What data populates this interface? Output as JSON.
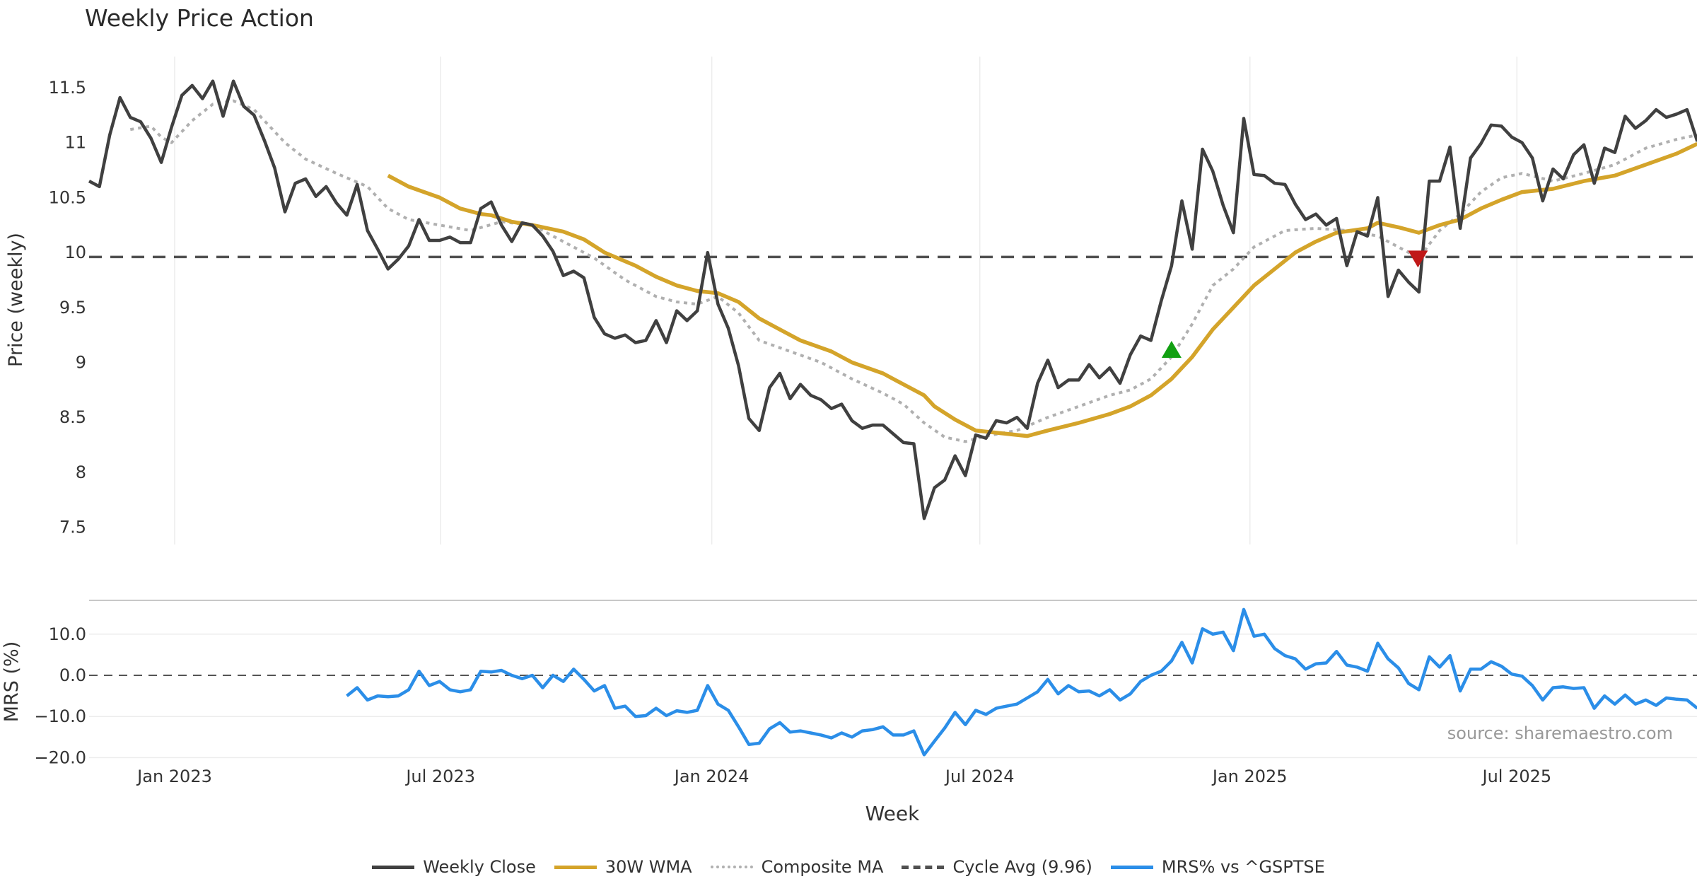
{
  "title": "Weekly Price Action",
  "source": "source: sharemaestro.com",
  "colors": {
    "close": "#404040",
    "wma": "#d4a42a",
    "composite": "#b0b0b0",
    "cycle": "#505050",
    "mrs": "#2b8ee8",
    "buy": "#12a012",
    "sell": "#c01818"
  },
  "legend": [
    {
      "label": "Weekly Close",
      "key": "close",
      "style": "solid"
    },
    {
      "label": "30W WMA",
      "key": "wma",
      "style": "solid"
    },
    {
      "label": "Composite MA",
      "key": "composite",
      "style": "dotted"
    },
    {
      "label": "Cycle Avg (9.96)",
      "key": "cycle",
      "style": "dashed"
    },
    {
      "label": "MRS% vs ^GSPTSE",
      "key": "mrs",
      "style": "solid"
    }
  ],
  "chart_data": [
    {
      "type": "line",
      "title": "Weekly Price Action",
      "ylabel": "Price (weekly)",
      "xlabel": "Week",
      "x_unit": "week index",
      "xlim": [
        0,
        156
      ],
      "ylim": [
        7.35,
        11.78
      ],
      "yticks": [
        11.5,
        11,
        10.5,
        10,
        9.5,
        9,
        8.5,
        8,
        7.5
      ],
      "ytick_labels": [
        "11.5",
        "11",
        "10.5",
        "10",
        "9.5",
        "9",
        "8.5",
        "8",
        "7.5"
      ],
      "xticks": [
        8.3,
        34.1,
        60.4,
        86.4,
        112.6,
        138.5
      ],
      "xtick_labels": [
        "Jan 2023",
        "Jul 2023",
        "Jan 2024",
        "Jul 2024",
        "Jan 2025",
        "Jul 2025"
      ],
      "grid": "vertical",
      "cycle_avg": 9.96,
      "series": [
        {
          "name": "Weekly Close",
          "key": "close",
          "start": 0,
          "values": [
            10.65,
            10.6,
            11.07,
            11.41,
            11.23,
            11.19,
            11.04,
            10.82,
            11.14,
            11.43,
            11.52,
            11.4,
            11.56,
            11.24,
            11.56,
            11.33,
            11.25,
            11.02,
            10.77,
            10.37,
            10.63,
            10.67,
            10.51,
            10.6,
            10.45,
            10.34,
            10.62,
            10.2,
            10.03,
            9.85,
            9.94,
            10.06,
            10.3,
            10.11,
            10.11,
            10.14,
            10.09,
            10.09,
            10.4,
            10.46,
            10.25,
            10.1,
            10.27,
            10.25,
            10.15,
            10.01,
            9.79,
            9.83,
            9.77,
            9.41,
            9.26,
            9.22,
            9.25,
            9.18,
            9.2,
            9.38,
            9.18,
            9.47,
            9.38,
            9.47,
            10.0,
            9.53,
            9.31,
            8.97,
            8.49,
            8.38,
            8.77,
            8.9,
            8.67,
            8.8,
            8.7,
            8.66,
            8.58,
            8.62,
            8.47,
            8.4,
            8.43,
            8.43,
            8.35,
            8.27,
            8.26,
            7.58,
            7.86,
            7.93,
            8.15,
            7.97,
            8.34,
            8.31,
            8.47,
            8.45,
            8.5,
            8.4,
            8.81,
            9.02,
            8.77,
            8.84,
            8.84,
            8.98,
            8.86,
            8.95,
            8.81,
            9.07,
            9.24,
            9.2,
            9.56,
            9.88,
            10.47,
            10.03,
            10.94,
            10.74,
            10.43,
            10.18,
            11.22,
            10.71,
            10.7,
            10.63,
            10.62,
            10.44,
            10.3,
            10.35,
            10.25,
            10.31,
            9.88,
            10.19,
            10.15,
            10.5,
            9.6,
            9.84,
            9.73,
            9.64,
            10.65,
            10.65,
            10.96,
            10.22,
            10.86,
            10.99,
            11.16,
            11.15,
            11.05,
            11.0,
            10.86,
            10.47,
            10.76,
            10.67,
            10.89,
            10.98,
            10.63,
            10.95,
            10.91,
            11.24,
            11.13,
            11.2,
            11.3,
            11.23,
            11.26,
            11.3,
            11.01
          ]
        },
        {
          "name": "30W WMA",
          "key": "wma",
          "points": [
            [
              29,
              10.7
            ],
            [
              31,
              10.6
            ],
            [
              34,
              10.5
            ],
            [
              36,
              10.4
            ],
            [
              38,
              10.35
            ],
            [
              39,
              10.34
            ],
            [
              41,
              10.28
            ],
            [
              43,
              10.25
            ],
            [
              46,
              10.19
            ],
            [
              48,
              10.12
            ],
            [
              50,
              10.0
            ],
            [
              53,
              9.88
            ],
            [
              55,
              9.78
            ],
            [
              57,
              9.7
            ],
            [
              59,
              9.65
            ],
            [
              61,
              9.63
            ],
            [
              63,
              9.55
            ],
            [
              65,
              9.4
            ],
            [
              67,
              9.3
            ],
            [
              69,
              9.2
            ],
            [
              72,
              9.1
            ],
            [
              74,
              9.0
            ],
            [
              77,
              8.9
            ],
            [
              79,
              8.8
            ],
            [
              81,
              8.7
            ],
            [
              82,
              8.6
            ],
            [
              84,
              8.48
            ],
            [
              86,
              8.38
            ],
            [
              89,
              8.35
            ],
            [
              91,
              8.33
            ],
            [
              93,
              8.38
            ],
            [
              96,
              8.45
            ],
            [
              99,
              8.53
            ],
            [
              101,
              8.6
            ],
            [
              103,
              8.7
            ],
            [
              105,
              8.85
            ],
            [
              107,
              9.05
            ],
            [
              109,
              9.3
            ],
            [
              111,
              9.5
            ],
            [
              113,
              9.7
            ],
            [
              115,
              9.85
            ],
            [
              117,
              10.0
            ],
            [
              119,
              10.1
            ],
            [
              121,
              10.18
            ],
            [
              124,
              10.22
            ],
            [
              125,
              10.27
            ],
            [
              127,
              10.23
            ],
            [
              129,
              10.18
            ],
            [
              131,
              10.25
            ],
            [
              133,
              10.3
            ],
            [
              135,
              10.4
            ],
            [
              137,
              10.48
            ],
            [
              139,
              10.55
            ],
            [
              142,
              10.58
            ],
            [
              145,
              10.65
            ],
            [
              148,
              10.7
            ],
            [
              151,
              10.8
            ],
            [
              154,
              10.9
            ],
            [
              156,
              10.99
            ]
          ]
        },
        {
          "name": "Composite MA",
          "key": "composite",
          "points": [
            [
              4,
              11.12
            ],
            [
              6,
              11.15
            ],
            [
              7,
              11.05
            ],
            [
              8,
              11.0
            ],
            [
              10,
              11.2
            ],
            [
              12,
              11.35
            ],
            [
              14,
              11.38
            ],
            [
              16,
              11.3
            ],
            [
              19,
              11.0
            ],
            [
              21,
              10.85
            ],
            [
              24,
              10.72
            ],
            [
              27,
              10.6
            ],
            [
              29,
              10.4
            ],
            [
              31,
              10.3
            ],
            [
              34,
              10.25
            ],
            [
              37,
              10.2
            ],
            [
              40,
              10.28
            ],
            [
              43,
              10.25
            ],
            [
              46,
              10.1
            ],
            [
              49,
              9.95
            ],
            [
              52,
              9.75
            ],
            [
              55,
              9.6
            ],
            [
              57,
              9.55
            ],
            [
              59,
              9.53
            ],
            [
              61,
              9.6
            ],
            [
              63,
              9.45
            ],
            [
              65,
              9.2
            ],
            [
              68,
              9.1
            ],
            [
              71,
              9.0
            ],
            [
              74,
              8.85
            ],
            [
              77,
              8.72
            ],
            [
              79,
              8.62
            ],
            [
              81,
              8.45
            ],
            [
              83,
              8.32
            ],
            [
              85,
              8.28
            ],
            [
              87,
              8.33
            ],
            [
              90,
              8.38
            ],
            [
              93,
              8.5
            ],
            [
              96,
              8.6
            ],
            [
              99,
              8.7
            ],
            [
              101,
              8.75
            ],
            [
              103,
              8.85
            ],
            [
              105,
              9.05
            ],
            [
              107,
              9.35
            ],
            [
              109,
              9.7
            ],
            [
              111,
              9.85
            ],
            [
              113,
              10.05
            ],
            [
              116,
              10.2
            ],
            [
              119,
              10.22
            ],
            [
              122,
              10.2
            ],
            [
              125,
              10.15
            ],
            [
              127,
              10.05
            ],
            [
              129,
              9.95
            ],
            [
              131,
              10.2
            ],
            [
              133,
              10.35
            ],
            [
              135,
              10.55
            ],
            [
              137,
              10.68
            ],
            [
              139,
              10.72
            ],
            [
              142,
              10.65
            ],
            [
              145,
              10.72
            ],
            [
              148,
              10.8
            ],
            [
              151,
              10.95
            ],
            [
              154,
              11.03
            ],
            [
              156,
              11.07
            ]
          ]
        }
      ],
      "signals": [
        {
          "type": "buy",
          "index": 105,
          "value": 9.1
        },
        {
          "type": "sell",
          "index": 128.9,
          "value": 9.96
        }
      ]
    },
    {
      "type": "line",
      "ylabel": "MRS (%)",
      "ylim": [
        -21.5,
        18
      ],
      "yticks": [
        10,
        0,
        -10,
        -20
      ],
      "ytick_labels": [
        "10.0",
        "0.0",
        "−10.0",
        "−20.0"
      ],
      "zero_line": 0,
      "series": [
        {
          "name": "MRS% vs ^GSPTSE",
          "key": "mrs",
          "start": 25,
          "values": [
            -5,
            -3,
            -6,
            -5,
            -5.2,
            -5,
            -3.5,
            1,
            -2.5,
            -1.5,
            -3.5,
            -4,
            -3.5,
            1,
            0.8,
            1.2,
            0,
            -0.8,
            0,
            -3,
            0,
            -1.5,
            1.5,
            -1,
            -3.8,
            -2.5,
            -8,
            -7.5,
            -10,
            -9.8,
            -8,
            -9.8,
            -8.6,
            -9,
            -8.5,
            -2.5,
            -7,
            -8.5,
            -12.5,
            -16.8,
            -16.5,
            -13,
            -11.5,
            -13.8,
            -13.5,
            -14,
            -14.5,
            -15.2,
            -14,
            -15,
            -13.5,
            -13.2,
            -12.5,
            -14.5,
            -14.5,
            -13.5,
            -19.3,
            -16,
            -12.8,
            -9,
            -12,
            -8.5,
            -9.5,
            -8,
            -7.5,
            -7,
            -5.5,
            -4,
            -1,
            -4.5,
            -2.5,
            -4,
            -3.8,
            -5,
            -3.5,
            -6,
            -4.5,
            -1.5,
            0,
            1,
            3.5,
            8,
            3,
            11.3,
            10,
            10.5,
            6,
            16,
            9.5,
            10,
            6.5,
            4.8,
            4,
            1.5,
            2.8,
            3,
            5.8,
            2.5,
            2,
            1,
            7.8,
            4,
            1.8,
            -2,
            -3.5,
            4.5,
            2,
            4.8,
            -3.8,
            1.5,
            1.5,
            3.3,
            2.2,
            0.3,
            -0.2,
            -2.5,
            -6,
            -3,
            -2.8,
            -3.2,
            -3,
            -8,
            -5,
            -7,
            -4.8,
            -7,
            -6,
            -7.3,
            -5.5,
            -5.8,
            -6,
            -8
          ]
        }
      ]
    }
  ]
}
